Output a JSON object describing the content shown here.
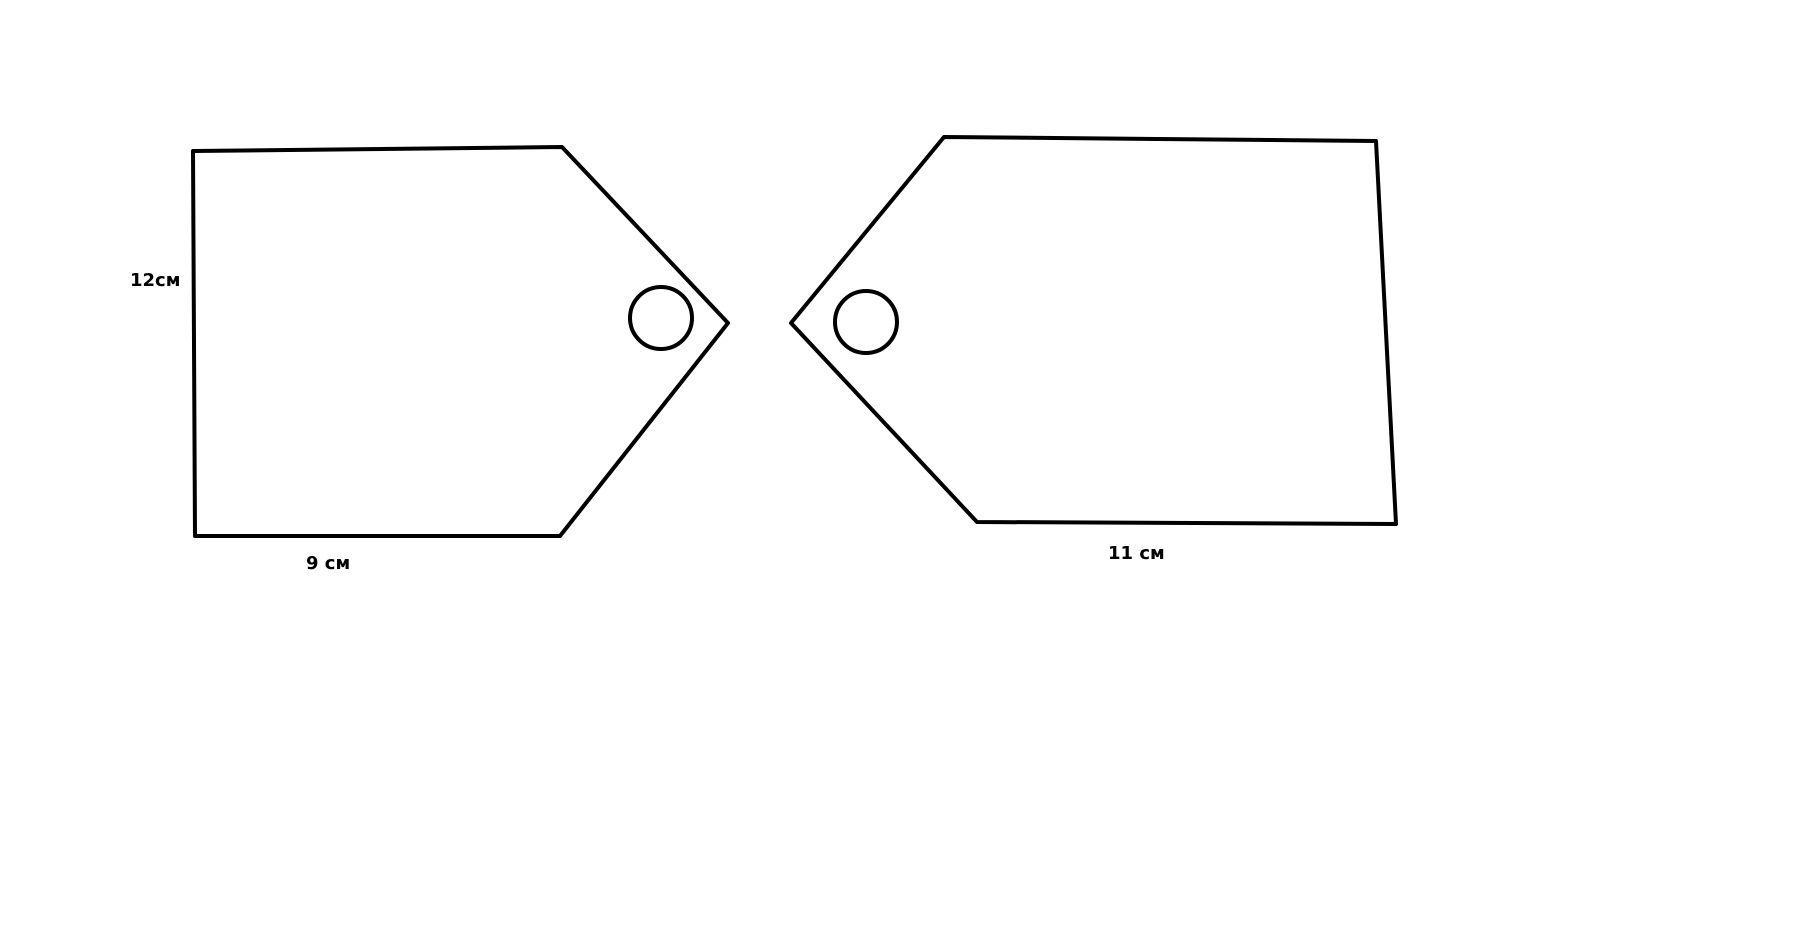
{
  "labels": {
    "left_tag_height": "12см",
    "left_tag_width": "9 см",
    "right_tag_width": "11 см"
  }
}
